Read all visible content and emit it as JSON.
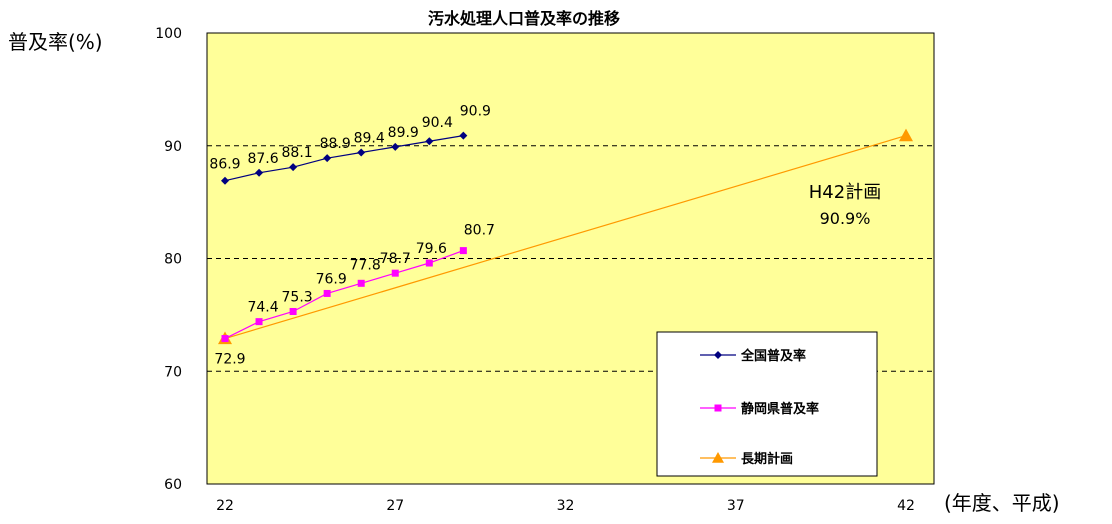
{
  "chart_data": {
    "type": "line",
    "title": "汚水処理人口普及率の推移",
    "ylabel": "普及率(%)",
    "xlabel": "(年度、平成)",
    "ylim": [
      60,
      100
    ],
    "xlim": [
      22,
      42
    ],
    "y_ticks": [
      "60",
      "70",
      "80",
      "90",
      "100"
    ],
    "x_ticks": [
      "22",
      "27",
      "32",
      "37",
      "42"
    ],
    "grid": "horizontal dashed",
    "legend_position": "bottom-right",
    "plot_background": "#FFFF99",
    "series": [
      {
        "name": "全国普及率",
        "color": "#000080",
        "marker": "diamond",
        "x": [
          22,
          23,
          24,
          25,
          26,
          27,
          28,
          29
        ],
        "y": [
          86.9,
          87.6,
          88.1,
          88.9,
          89.4,
          89.9,
          90.4,
          90.9
        ],
        "labels": [
          "86.9",
          "87.6",
          "88.1",
          "88.9",
          "89.4",
          "89.9",
          "90.4",
          "90.9"
        ]
      },
      {
        "name": "静岡県普及率",
        "color": "#FF00FF",
        "marker": "square",
        "x": [
          22,
          23,
          24,
          25,
          26,
          27,
          28,
          29
        ],
        "y": [
          72.9,
          74.4,
          75.3,
          76.9,
          77.8,
          78.7,
          79.6,
          80.7
        ],
        "labels": [
          "72.9",
          "74.4",
          "75.3",
          "76.9",
          "77.8",
          "78.7",
          "79.6",
          "80.7"
        ]
      },
      {
        "name": "長期計画",
        "color": "#FF9900",
        "marker": "triangle",
        "x": [
          22,
          42
        ],
        "y": [
          72.9,
          90.9
        ]
      }
    ],
    "annotation": {
      "line1": "H42計画",
      "line2": "90.9%"
    }
  }
}
